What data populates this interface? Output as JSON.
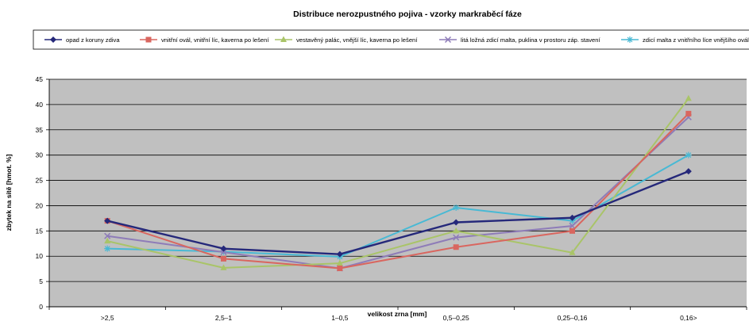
{
  "chart_data": {
    "type": "line",
    "title": "Distribuce nerozpustného pojiva - vzorky markraběcí fáze",
    "xlabel": "velikost zrna [mm]",
    "ylabel": "zbytek na sítě [hmot. %]",
    "categories": [
      ">2,5",
      "2,5–1",
      "1–0,5",
      "0,5–0,25",
      "0,25–0,16",
      "0,16>"
    ],
    "ylim": [
      0,
      45
    ],
    "yticks": [
      0,
      5,
      10,
      15,
      20,
      25,
      30,
      35,
      40,
      45
    ],
    "grid": true,
    "legend_position": "top",
    "background": "#c0c0c0",
    "series": [
      {
        "name": "opad z koruny zdiva",
        "color": "#25287a",
        "marker": "diamond",
        "values": [
          17.0,
          11.5,
          10.4,
          16.7,
          17.6,
          26.8
        ]
      },
      {
        "name": "vnitřní ovál, vnitřní líc, kaverna po lešení",
        "color": "#d9665f",
        "marker": "square",
        "values": [
          17.0,
          9.5,
          7.6,
          11.8,
          15.0,
          38.2
        ]
      },
      {
        "name": "vestavěný palác, vnější líc, kaverna po lešení",
        "color": "#a9c468",
        "marker": "triangle",
        "values": [
          13.0,
          7.7,
          8.6,
          15.0,
          10.7,
          41.2
        ]
      },
      {
        "name": "litá ložná zdicí malta, puklina v prostoru záp. stavení",
        "color": "#8e7cb8",
        "marker": "x",
        "values": [
          14.0,
          10.8,
          7.6,
          13.7,
          16.0,
          37.5
        ]
      },
      {
        "name": "zdicí malta z vnitřního líce vnějšího oválu",
        "color": "#48b9d4",
        "marker": "star",
        "values": [
          11.5,
          10.9,
          9.9,
          19.6,
          17.0,
          30.0
        ]
      }
    ]
  }
}
